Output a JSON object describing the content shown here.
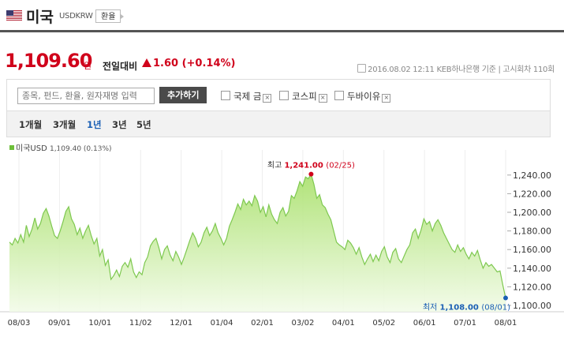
{
  "header": {
    "title": "미국",
    "code": "USDKRW",
    "exchange_button": "환율"
  },
  "quote": {
    "price": "1,109.60",
    "unit": "원",
    "change_label": "전일대비",
    "change_value": "1.60 (+0.14%)",
    "meta": "2016.08.02 12:11  KEB하나은행 기준  |  고시회차 110회"
  },
  "toolbar": {
    "search_placeholder": "종목, 펀드, 환율, 원자재명 입력",
    "add_button": "추가하기",
    "compare": [
      "국제 금",
      "코스피",
      "두바이유"
    ]
  },
  "period_tabs": [
    "1개월",
    "3개월",
    "1년",
    "3년",
    "5년"
  ],
  "period_selected": "1년",
  "legend": {
    "label": "미국USD",
    "value": "1,109.40 (0.13%)"
  },
  "colors": {
    "line": "#7ec850",
    "fill_top": "#a8e06a",
    "up": "#d0021b",
    "low": "#1a5fb4"
  },
  "chart_data": {
    "type": "area",
    "title": "",
    "xlabel": "",
    "ylabel": "",
    "ylim": [
      1100,
      1250
    ],
    "yticks": [
      "1,100.00",
      "1,120.00",
      "1,140.00",
      "1,160.00",
      "1,180.00",
      "1,200.00",
      "1,220.00",
      "1,240.00"
    ],
    "xtick_labels": [
      "08/03",
      "09/01",
      "10/01",
      "11/02",
      "12/01",
      "01/04",
      "02/01",
      "03/02",
      "04/01",
      "05/02",
      "06/01",
      "07/01",
      "08/01"
    ],
    "high": {
      "label": "최고",
      "value": "1,241.00",
      "date": "(02/25)",
      "y": 1241
    },
    "low": {
      "label": "최저",
      "value": "1,108.00",
      "date": "(08/01)",
      "y": 1108
    },
    "series": [
      {
        "values": [
          1168,
          1165,
          1172,
          1167,
          1176,
          1168,
          1186,
          1174,
          1182,
          1194,
          1182,
          1188,
          1199,
          1204,
          1196,
          1185,
          1175,
          1172,
          1180,
          1190,
          1201,
          1206,
          1193,
          1187,
          1176,
          1183,
          1172,
          1180,
          1186,
          1175,
          1166,
          1172,
          1153,
          1160,
          1143,
          1149,
          1128,
          1132,
          1138,
          1131,
          1142,
          1146,
          1141,
          1150,
          1136,
          1130,
          1136,
          1133,
          1146,
          1152,
          1164,
          1169,
          1172,
          1162,
          1150,
          1160,
          1164,
          1154,
          1148,
          1158,
          1152,
          1144,
          1152,
          1161,
          1170,
          1178,
          1172,
          1163,
          1168,
          1178,
          1184,
          1175,
          1180,
          1188,
          1178,
          1172,
          1165,
          1172,
          1185,
          1192,
          1200,
          1209,
          1203,
          1214,
          1208,
          1212,
          1207,
          1218,
          1212,
          1200,
          1206,
          1195,
          1208,
          1198,
          1192,
          1188,
          1200,
          1205,
          1196,
          1201,
          1218,
          1215,
          1223,
          1233,
          1228,
          1238,
          1236,
          1241,
          1230,
          1215,
          1219,
          1208,
          1205,
          1198,
          1192,
          1180,
          1168,
          1165,
          1163,
          1160,
          1170,
          1167,
          1162,
          1155,
          1162,
          1152,
          1144,
          1150,
          1155,
          1147,
          1154,
          1148,
          1158,
          1163,
          1152,
          1146,
          1157,
          1161,
          1150,
          1146,
          1153,
          1160,
          1165,
          1178,
          1182,
          1172,
          1181,
          1193,
          1187,
          1190,
          1180,
          1188,
          1192,
          1186,
          1178,
          1172,
          1166,
          1160,
          1157,
          1165,
          1158,
          1162,
          1155,
          1150,
          1157,
          1153,
          1159,
          1149,
          1140,
          1146,
          1142,
          1144,
          1140,
          1136,
          1137,
          1122,
          1108
        ]
      }
    ]
  }
}
